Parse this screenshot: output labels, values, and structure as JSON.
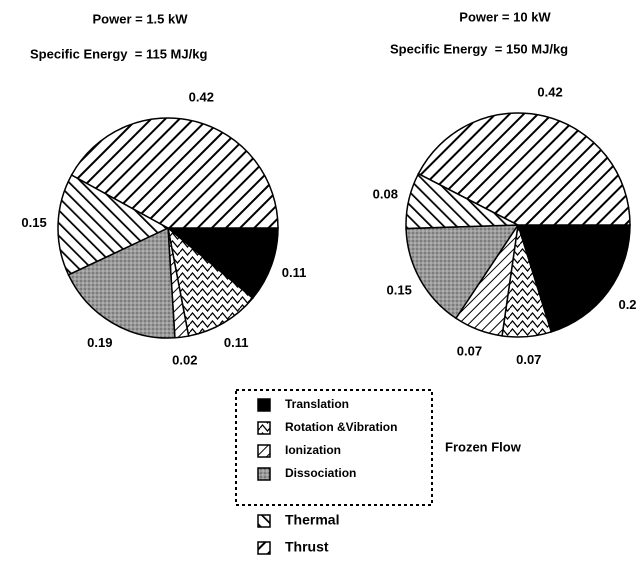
{
  "chart_data": [
    {
      "type": "pie",
      "title": "Power = 1.5 kW",
      "subtitle": "Specific Energy  = 115 MJ/kg",
      "categories": [
        "Translation",
        "Rotation &Vibration",
        "Ionization",
        "Dissociation",
        "Thermal",
        "Thrust"
      ],
      "values": [
        0.11,
        0.11,
        0.02,
        0.19,
        0.15,
        0.42
      ]
    },
    {
      "type": "pie",
      "title": "Power = 10 kW",
      "subtitle": "Specific Energy  = 150 MJ/kg",
      "categories": [
        "Translation",
        "Rotation &Vibration",
        "Ionization",
        "Dissociation",
        "Thermal",
        "Thrust"
      ],
      "values": [
        0.2,
        0.07,
        0.07,
        0.15,
        0.08,
        0.42
      ]
    }
  ],
  "legend_group": "Frozen Flow"
}
